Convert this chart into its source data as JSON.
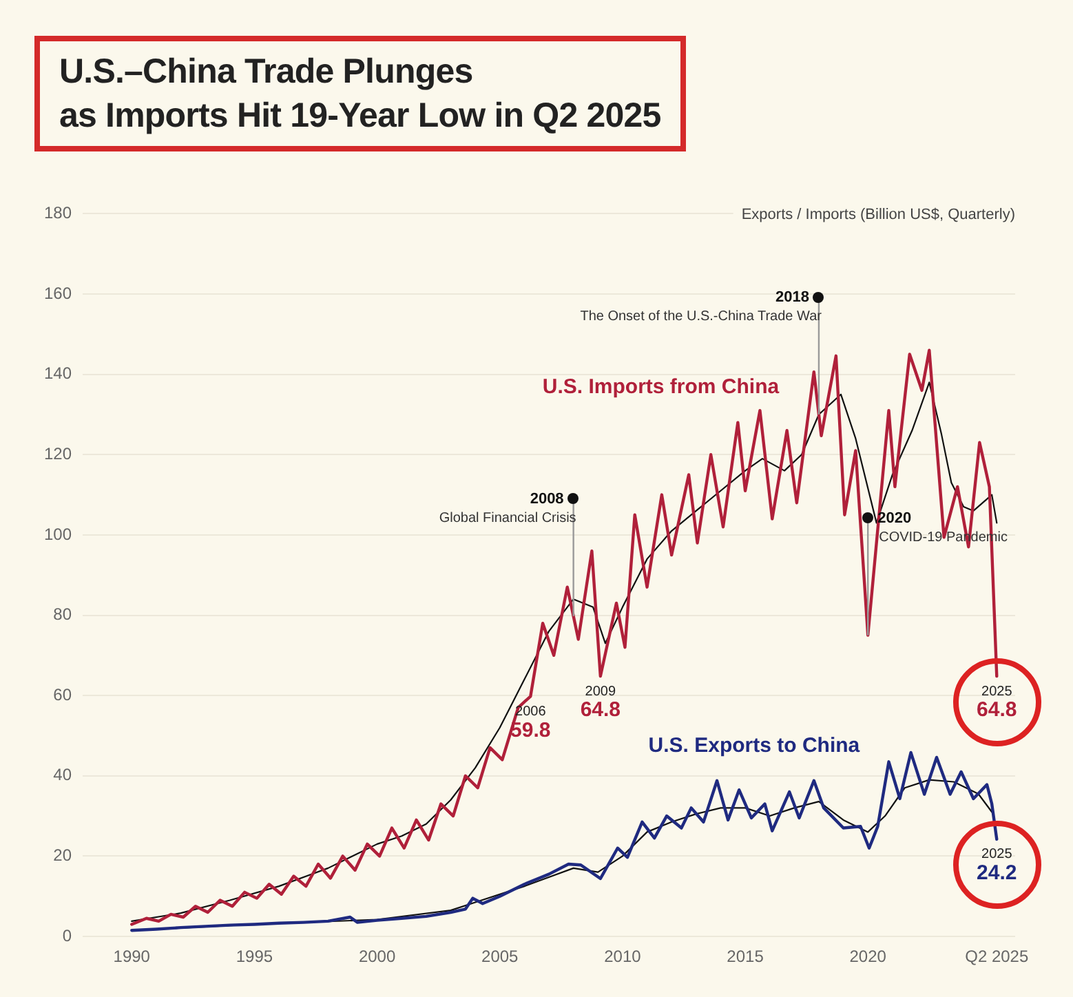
{
  "chart_data": {
    "type": "line",
    "title": "U.S.–China Trade Plunges\nas Imports Hit 19-Year Low in Q2 2025",
    "ylabel": "Exports / Imports (Billion US$, Quarterly)",
    "xlim": [
      1988,
      2026
    ],
    "xticks": [
      1990,
      1995,
      2000,
      2005,
      2010,
      2015,
      2020,
      {
        "value": 2025.25,
        "label": "Q2 2025"
      }
    ],
    "ylim": [
      0,
      180
    ],
    "yticks": [
      0,
      20,
      40,
      60,
      80,
      100,
      120,
      140,
      160,
      180
    ],
    "grid": "y",
    "legend": false,
    "series": [
      {
        "name": "U.S. Imports from China",
        "color": "#b0203a",
        "x": [
          1990.0,
          1990.6,
          1991.1,
          1991.6,
          1992.1,
          1992.6,
          1993.1,
          1993.6,
          1994.1,
          1994.6,
          1995.1,
          1995.6,
          1996.1,
          1996.6,
          1997.1,
          1997.6,
          1998.1,
          1998.6,
          1999.1,
          1999.6,
          2000.1,
          2000.6,
          2001.1,
          2001.6,
          2002.1,
          2002.6,
          2003.1,
          2003.6,
          2004.1,
          2004.6,
          2005.1,
          2005.75,
          2006.25,
          2006.75,
          2007.2,
          2007.75,
          2008.2,
          2008.75,
          2009.1,
          2009.75,
          2010.1,
          2010.5,
          2011.0,
          2011.6,
          2012.0,
          2012.7,
          2013.05,
          2013.6,
          2014.1,
          2014.7,
          2015.0,
          2015.6,
          2016.1,
          2016.7,
          2017.1,
          2017.8,
          2018.1,
          2018.7,
          2019.05,
          2019.5,
          2020.0,
          2020.85,
          2021.1,
          2021.7,
          2022.2,
          2022.5,
          2023.1,
          2023.65,
          2024.1,
          2024.55,
          2024.95,
          2025.25
        ],
        "values": [
          3,
          4.5,
          3.8,
          5.5,
          4.8,
          7.5,
          6,
          9,
          7.5,
          11,
          9.5,
          13,
          10.5,
          15,
          12.5,
          18,
          14.5,
          20,
          16.5,
          23,
          20,
          27,
          22,
          29,
          24,
          33,
          30,
          40,
          37,
          47,
          44,
          57,
          59.8,
          78,
          70,
          87,
          74,
          96,
          64.8,
          83,
          72,
          105,
          87,
          110,
          95,
          115,
          98,
          120,
          102,
          128,
          111,
          131,
          104,
          126,
          108,
          140.6,
          124.7,
          144.6,
          105,
          121,
          75,
          131,
          112,
          145,
          136,
          146,
          99.4,
          112,
          97,
          123,
          112,
          64.8
        ],
        "value_labels": [
          null,
          null,
          null,
          null,
          null,
          null,
          null,
          null,
          null,
          null,
          null,
          null,
          null,
          null,
          null,
          null,
          null,
          null,
          null,
          null,
          null,
          null,
          null,
          null,
          null,
          null,
          null,
          null,
          null,
          null,
          null,
          null,
          "59.8",
          null,
          null,
          null,
          null,
          null,
          "64.8",
          null,
          null,
          null,
          null,
          null,
          null,
          null,
          null,
          null,
          null,
          null,
          null,
          null,
          null,
          null,
          null,
          null,
          null,
          null,
          null,
          null,
          null,
          null,
          null,
          null,
          null,
          null,
          null,
          null,
          null,
          null,
          null,
          "64.8"
        ]
      },
      {
        "color": "#111111",
        "x": [
          1990,
          1992,
          1994,
          1996,
          1998,
          2000,
          2001,
          2002,
          2003,
          2004,
          2005,
          2006,
          2007,
          2008,
          2008.8,
          2009.3,
          2010,
          2011,
          2012,
          2013,
          2014,
          2015,
          2015.7,
          2016.6,
          2017.3,
          2018,
          2018.9,
          2019.5,
          2020.35,
          2021,
          2021.8,
          2022.5,
          2023.0,
          2023.4,
          2023.9,
          2024.3,
          2025.05,
          2025.25
        ],
        "values": [
          3.8,
          5.8,
          9,
          12.5,
          17,
          23,
          25,
          28,
          34,
          42,
          52,
          64,
          76,
          84,
          82,
          73,
          82,
          94,
          101,
          106,
          111,
          116,
          119,
          116,
          120,
          130,
          135,
          124,
          103,
          115,
          126,
          138,
          125,
          113,
          107,
          106,
          110,
          103
        ]
      },
      {
        "name": "U.S. Exports to China",
        "color": "#1f2a80",
        "x": [
          1990,
          1991,
          1992,
          1993,
          1994,
          1995,
          1996,
          1997,
          1998,
          1998.9,
          1999.2,
          2000,
          2001,
          2002,
          2003,
          2003.6,
          2003.9,
          2004.3,
          2005,
          2006,
          2007,
          2007.8,
          2008.3,
          2009.1,
          2009.8,
          2010.2,
          2010.8,
          2011.3,
          2011.8,
          2012.4,
          2012.8,
          2013.3,
          2013.85,
          2014.3,
          2014.75,
          2015.25,
          2015.8,
          2016.1,
          2016.8,
          2017.2,
          2017.8,
          2018.2,
          2019.0,
          2019.7,
          2020.05,
          2020.4,
          2020.85,
          2021.3,
          2021.75,
          2022.3,
          2022.8,
          2023.35,
          2023.8,
          2024.3,
          2024.85,
          2025.05,
          2025.25
        ],
        "values": [
          1.5,
          1.8,
          2.2,
          2.5,
          2.8,
          3.0,
          3.3,
          3.5,
          3.8,
          4.8,
          3.5,
          4,
          4.5,
          5,
          6,
          6.8,
          9.5,
          8.2,
          10,
          13,
          15.5,
          18,
          17.8,
          14.4,
          22,
          19.7,
          28.5,
          24.5,
          30,
          27,
          32,
          28.5,
          38.8,
          29,
          36.5,
          29.5,
          33,
          26.3,
          36,
          29.5,
          38.8,
          32,
          27,
          27.4,
          22,
          27.4,
          43.5,
          34.3,
          45.8,
          35.4,
          44.6,
          35.4,
          41,
          34.3,
          37.8,
          33,
          24.2
        ],
        "value_labels": [
          null,
          null,
          null,
          null,
          null,
          null,
          null,
          null,
          null,
          null,
          null,
          null,
          null,
          null,
          null,
          null,
          null,
          null,
          null,
          null,
          null,
          null,
          null,
          null,
          null,
          null,
          null,
          null,
          null,
          null,
          null,
          null,
          null,
          null,
          null,
          null,
          null,
          null,
          null,
          null,
          null,
          null,
          null,
          null,
          null,
          null,
          null,
          null,
          null,
          null,
          null,
          null,
          null,
          null,
          null,
          null,
          "24.2"
        ]
      },
      {
        "color": "#111111",
        "x": [
          1990,
          1995,
          2000,
          2003,
          2004,
          2006,
          2008,
          2009,
          2010,
          2011,
          2012,
          2013,
          2014,
          2015,
          2016,
          2017,
          2018,
          2019,
          2020,
          2020.7,
          2021.5,
          2022.5,
          2023.5,
          2024.5,
          2025.05
        ],
        "values": [
          1.5,
          3,
          4.2,
          6.5,
          8.5,
          12.5,
          17,
          16,
          20,
          26,
          28.5,
          30.5,
          32,
          32,
          30,
          32,
          33.6,
          29,
          26,
          30,
          37,
          39,
          38.5,
          35.5,
          31
        ]
      }
    ],
    "ref_lines": [
      {
        "axis": "x",
        "value": 2008,
        "label": "2008\nGlobal Financial Crisis"
      },
      {
        "axis": "x",
        "value": 2018,
        "label": "2018\nThe Onset of the U.S.-China Trade War"
      },
      {
        "axis": "x",
        "value": 2020,
        "label": "2020\nCOVID-19 Pandemic"
      }
    ],
    "annotations": [
      {
        "text": "2006",
        "x": 2006.25,
        "y": 59.8
      },
      {
        "text": "2009",
        "x": 2009.1,
        "y": 64.8
      },
      {
        "text": "2025",
        "x": 2025.25,
        "y": 64.8
      },
      {
        "text": "2025",
        "x": 2025.25,
        "y": 24.2
      }
    ]
  }
}
